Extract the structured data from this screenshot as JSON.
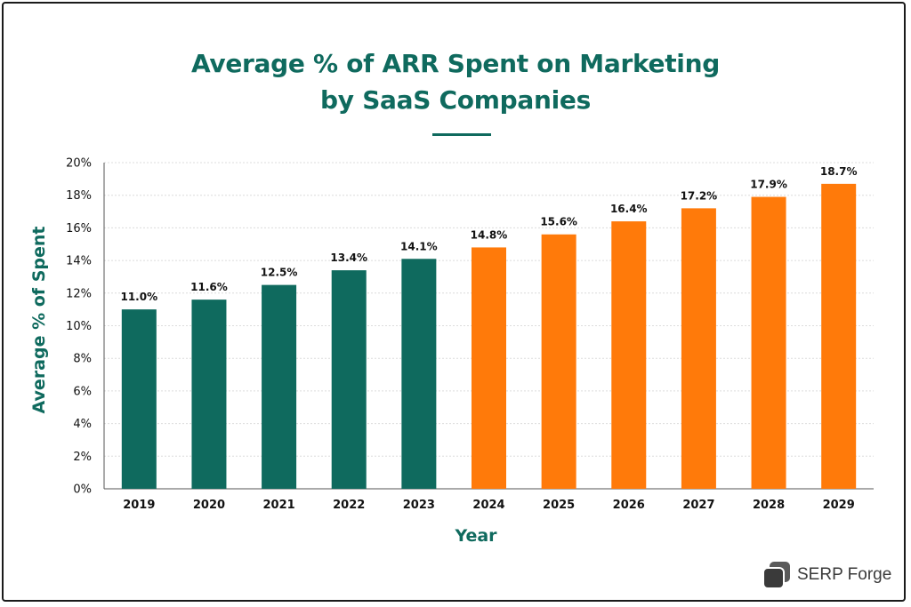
{
  "title_line1": "Average % of ARR Spent on Marketing",
  "title_line2": "by SaaS Companies",
  "brand": "SERP Forge",
  "colors": {
    "historical": "#0f6a5e",
    "projected": "#ff7a0a",
    "title": "#0f6a5e"
  },
  "chart_data": {
    "type": "bar",
    "title": "Average % of ARR Spent on Marketing by SaaS Companies",
    "xlabel": "Year",
    "ylabel": "Average % of Spent",
    "categories": [
      "2019",
      "2020",
      "2021",
      "2022",
      "2023",
      "2024",
      "2025",
      "2026",
      "2027",
      "2028",
      "2029"
    ],
    "values": [
      11.0,
      11.6,
      12.5,
      13.4,
      14.1,
      14.8,
      15.6,
      16.4,
      17.2,
      17.9,
      18.7
    ],
    "data_labels": [
      "11.0%",
      "11.6%",
      "12.5%",
      "13.4%",
      "14.1%",
      "14.8%",
      "15.6%",
      "16.4%",
      "17.2%",
      "17.9%",
      "18.7%"
    ],
    "bar_colors": [
      "#0f6a5e",
      "#0f6a5e",
      "#0f6a5e",
      "#0f6a5e",
      "#0f6a5e",
      "#ff7a0a",
      "#ff7a0a",
      "#ff7a0a",
      "#ff7a0a",
      "#ff7a0a",
      "#ff7a0a"
    ],
    "ylim": [
      0,
      20
    ],
    "yticks": [
      0,
      2,
      4,
      6,
      8,
      10,
      12,
      14,
      16,
      18,
      20
    ],
    "ytick_labels": [
      "0%",
      "2%",
      "4%",
      "6%",
      "8%",
      "10%",
      "12%",
      "14%",
      "16%",
      "18%",
      "20%"
    ],
    "grid": true,
    "legend": "none"
  }
}
